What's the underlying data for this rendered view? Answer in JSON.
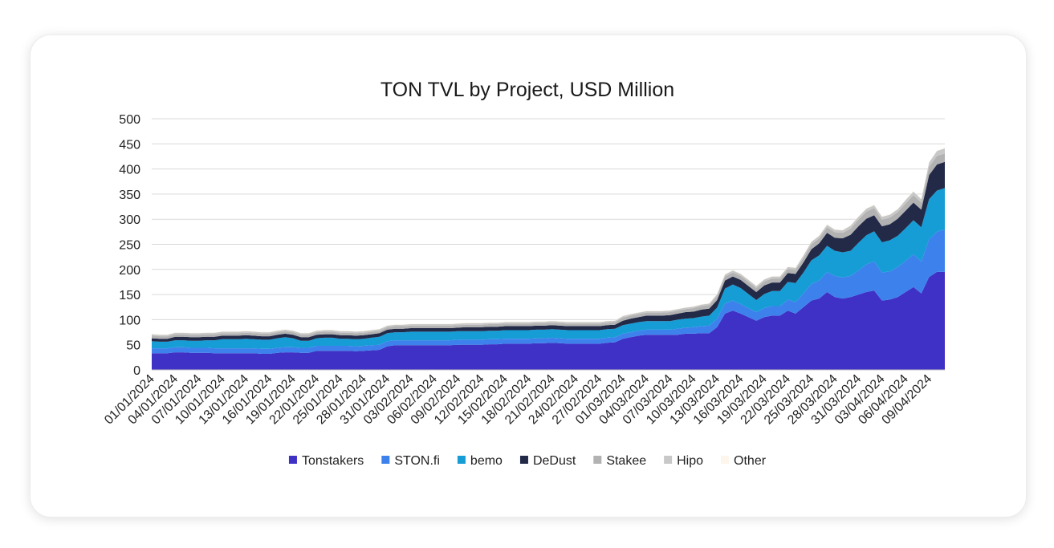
{
  "chart_data": {
    "type": "area",
    "stacked": true,
    "title": "TON TVL by Project, USD Million",
    "xlabel": "",
    "ylabel": "",
    "ylim": [
      0,
      500
    ],
    "yticks": [
      0,
      50,
      100,
      150,
      200,
      250,
      300,
      350,
      400,
      450,
      500
    ],
    "grid": true,
    "legend_position": "bottom",
    "x_tick_labels": [
      "01/01/2024",
      "04/01/2024",
      "07/01/2024",
      "10/01/2024",
      "13/01/2024",
      "16/01/2024",
      "19/01/2024",
      "22/01/2024",
      "25/01/2024",
      "28/01/2024",
      "31/01/2024",
      "03/02/2024",
      "06/02/2024",
      "09/02/2024",
      "12/02/2024",
      "15/02/2024",
      "18/02/2024",
      "21/02/2024",
      "24/02/2024",
      "27/02/2024",
      "01/03/2024",
      "04/03/2024",
      "07/03/2024",
      "10/03/2024",
      "13/03/2024",
      "16/03/2024",
      "19/03/2024",
      "22/03/2024",
      "25/03/2024",
      "28/03/2024",
      "31/03/2024",
      "03/04/2024",
      "06/04/2024",
      "09/04/2024"
    ],
    "x": [
      "01/01/2024",
      "02/01/2024",
      "03/01/2024",
      "04/01/2024",
      "05/01/2024",
      "06/01/2024",
      "07/01/2024",
      "08/01/2024",
      "09/01/2024",
      "10/01/2024",
      "11/01/2024",
      "12/01/2024",
      "13/01/2024",
      "14/01/2024",
      "15/01/2024",
      "16/01/2024",
      "17/01/2024",
      "18/01/2024",
      "19/01/2024",
      "20/01/2024",
      "21/01/2024",
      "22/01/2024",
      "23/01/2024",
      "24/01/2024",
      "25/01/2024",
      "26/01/2024",
      "27/01/2024",
      "28/01/2024",
      "29/01/2024",
      "30/01/2024",
      "31/01/2024",
      "01/02/2024",
      "02/02/2024",
      "03/02/2024",
      "04/02/2024",
      "05/02/2024",
      "06/02/2024",
      "07/02/2024",
      "08/02/2024",
      "09/02/2024",
      "10/02/2024",
      "11/02/2024",
      "12/02/2024",
      "13/02/2024",
      "14/02/2024",
      "15/02/2024",
      "16/02/2024",
      "17/02/2024",
      "18/02/2024",
      "19/02/2024",
      "20/02/2024",
      "21/02/2024",
      "22/02/2024",
      "23/02/2024",
      "24/02/2024",
      "25/02/2024",
      "26/02/2024",
      "27/02/2024",
      "28/02/2024",
      "29/02/2024",
      "01/03/2024",
      "02/03/2024",
      "03/03/2024",
      "04/03/2024",
      "05/03/2024",
      "06/03/2024",
      "07/03/2024",
      "08/03/2024",
      "09/03/2024",
      "10/03/2024",
      "11/03/2024",
      "12/03/2024",
      "13/03/2024",
      "14/03/2024",
      "15/03/2024",
      "16/03/2024",
      "17/03/2024",
      "18/03/2024",
      "19/03/2024",
      "20/03/2024",
      "21/03/2024",
      "22/03/2024",
      "23/03/2024",
      "24/03/2024",
      "25/03/2024",
      "26/03/2024",
      "27/03/2024",
      "28/03/2024",
      "29/03/2024",
      "30/03/2024",
      "31/03/2024",
      "01/04/2024",
      "02/04/2024",
      "03/04/2024",
      "04/04/2024",
      "05/04/2024",
      "06/04/2024",
      "07/04/2024",
      "08/04/2024",
      "09/04/2024",
      "10/04/2024",
      "11/04/2024"
    ],
    "series": [
      {
        "name": "Tonstakers",
        "color": "#3f31c6",
        "values": [
          33,
          33,
          33,
          35,
          35,
          34,
          34,
          34,
          33,
          33,
          33,
          33,
          33,
          33,
          32,
          32,
          34,
          35,
          35,
          34,
          34,
          38,
          38,
          38,
          38,
          38,
          37,
          38,
          39,
          40,
          47,
          49,
          49,
          49,
          49,
          49,
          49,
          49,
          49,
          50,
          50,
          50,
          50,
          51,
          51,
          52,
          52,
          52,
          52,
          53,
          53,
          54,
          53,
          52,
          52,
          52,
          52,
          52,
          54,
          55,
          62,
          65,
          68,
          70,
          70,
          70,
          70,
          70,
          72,
          72,
          73,
          73,
          85,
          112,
          118,
          112,
          105,
          98,
          105,
          108,
          108,
          118,
          112,
          125,
          138,
          142,
          155,
          145,
          142,
          145,
          150,
          155,
          158,
          138,
          140,
          145,
          155,
          165,
          152,
          185,
          195,
          195
        ]
      },
      {
        "name": "STON.fi",
        "color": "#3d82ec",
        "values": [
          10,
          10,
          10,
          10,
          10,
          10,
          10,
          10,
          10,
          10,
          10,
          10,
          10,
          10,
          10,
          10,
          10,
          10,
          10,
          10,
          10,
          10,
          10,
          10,
          10,
          10,
          10,
          10,
          10,
          10,
          10,
          10,
          10,
          10,
          10,
          10,
          10,
          10,
          10,
          10,
          10,
          10,
          10,
          10,
          10,
          10,
          10,
          10,
          10,
          10,
          10,
          10,
          10,
          10,
          10,
          10,
          10,
          10,
          10,
          10,
          10,
          10,
          10,
          10,
          10,
          10,
          10,
          12,
          12,
          13,
          14,
          15,
          17,
          20,
          20,
          19,
          18,
          17,
          18,
          19,
          19,
          22,
          23,
          27,
          33,
          36,
          40,
          42,
          42,
          42,
          48,
          55,
          58,
          56,
          56,
          60,
          62,
          65,
          64,
          75,
          80,
          85
        ]
      },
      {
        "name": "bemo",
        "color": "#169dd6",
        "values": [
          14,
          13,
          13,
          14,
          14,
          14,
          14,
          15,
          16,
          18,
          18,
          18,
          19,
          18,
          18,
          18,
          19,
          20,
          18,
          14,
          14,
          15,
          16,
          16,
          14,
          14,
          14,
          14,
          15,
          16,
          16,
          16,
          16,
          17,
          17,
          17,
          17,
          17,
          17,
          17,
          17,
          17,
          17,
          17,
          17,
          17,
          17,
          17,
          17,
          17,
          17,
          17,
          17,
          17,
          17,
          17,
          17,
          17,
          17,
          17,
          17,
          17,
          17,
          17,
          17,
          17,
          17,
          18,
          18,
          18,
          19,
          20,
          22,
          30,
          32,
          32,
          28,
          24,
          28,
          30,
          30,
          35,
          38,
          42,
          47,
          50,
          52,
          50,
          50,
          50,
          55,
          58,
          60,
          60,
          62,
          62,
          65,
          68,
          68,
          80,
          82,
          82
        ]
      },
      {
        "name": "DeDust",
        "color": "#232a48",
        "values": [
          6,
          6,
          6,
          7,
          7,
          7,
          7,
          7,
          7,
          7,
          7,
          7,
          7,
          7,
          7,
          7,
          7,
          7,
          7,
          7,
          7,
          7,
          7,
          7,
          7,
          7,
          7,
          7,
          7,
          7,
          7,
          7,
          7,
          7,
          7,
          7,
          7,
          7,
          7,
          7,
          8,
          8,
          8,
          8,
          8,
          8,
          8,
          8,
          8,
          8,
          8,
          8,
          8,
          8,
          8,
          8,
          8,
          8,
          8,
          8,
          9,
          10,
          10,
          11,
          11,
          11,
          12,
          12,
          13,
          13,
          14,
          14,
          15,
          16,
          16,
          16,
          16,
          16,
          17,
          17,
          17,
          18,
          18,
          20,
          22,
          24,
          26,
          26,
          28,
          32,
          33,
          33,
          32,
          32,
          32,
          34,
          35,
          35,
          35,
          48,
          52,
          52
        ]
      },
      {
        "name": "Stakee",
        "color": "#b2b2b2",
        "values": [
          5,
          5,
          5,
          5,
          5,
          5,
          5,
          5,
          5,
          5,
          5,
          5,
          5,
          5,
          5,
          5,
          5,
          5,
          5,
          5,
          5,
          5,
          5,
          5,
          5,
          5,
          5,
          5,
          5,
          5,
          5,
          5,
          5,
          5,
          5,
          5,
          5,
          5,
          5,
          5,
          5,
          5,
          5,
          5,
          5,
          5,
          5,
          5,
          5,
          5,
          5,
          5,
          5,
          5,
          5,
          5,
          5,
          5,
          5,
          5,
          6,
          6,
          6,
          6,
          6,
          6,
          6,
          6,
          6,
          7,
          7,
          7,
          8,
          8,
          8,
          8,
          8,
          8,
          8,
          8,
          8,
          8,
          8,
          9,
          10,
          10,
          11,
          11,
          11,
          12,
          13,
          14,
          14,
          13,
          13,
          13,
          14,
          15,
          14,
          16,
          17,
          17
        ]
      },
      {
        "name": "Hipo",
        "color": "#c8c8c8",
        "values": [
          3,
          3,
          3,
          3,
          3,
          3,
          3,
          3,
          3,
          3,
          3,
          3,
          3,
          3,
          3,
          3,
          3,
          3,
          3,
          3,
          3,
          3,
          3,
          3,
          3,
          3,
          3,
          3,
          3,
          3,
          3,
          3,
          3,
          3,
          3,
          3,
          3,
          3,
          3,
          3,
          3,
          3,
          3,
          3,
          3,
          3,
          3,
          3,
          3,
          3,
          3,
          3,
          3,
          3,
          3,
          3,
          3,
          3,
          3,
          3,
          3,
          3,
          3,
          3,
          3,
          3,
          3,
          3,
          3,
          3,
          3,
          3,
          4,
          4,
          4,
          4,
          4,
          4,
          4,
          4,
          4,
          4,
          4,
          5,
          5,
          5,
          5,
          5,
          5,
          6,
          6,
          6,
          6,
          6,
          6,
          6,
          7,
          7,
          7,
          9,
          10,
          10
        ]
      },
      {
        "name": "Other",
        "color": "#fdf6ec",
        "values": [
          1,
          1,
          1,
          1,
          1,
          1,
          1,
          1,
          1,
          1,
          1,
          1,
          1,
          1,
          1,
          1,
          1,
          1,
          1,
          1,
          1,
          1,
          1,
          1,
          1,
          1,
          1,
          1,
          1,
          1,
          1,
          1,
          1,
          1,
          1,
          1,
          1,
          1,
          1,
          1,
          1,
          1,
          1,
          1,
          1,
          1,
          1,
          1,
          1,
          1,
          1,
          1,
          1,
          1,
          1,
          1,
          1,
          1,
          1,
          1,
          1,
          1,
          1,
          1,
          1,
          1,
          1,
          1,
          1,
          1,
          1,
          1,
          1,
          1,
          1,
          1,
          1,
          1,
          1,
          1,
          1,
          1,
          1,
          1,
          1,
          1,
          1,
          1,
          1,
          1,
          1,
          1,
          1,
          1,
          1,
          1,
          1,
          1,
          1,
          1,
          1,
          1
        ]
      }
    ]
  }
}
